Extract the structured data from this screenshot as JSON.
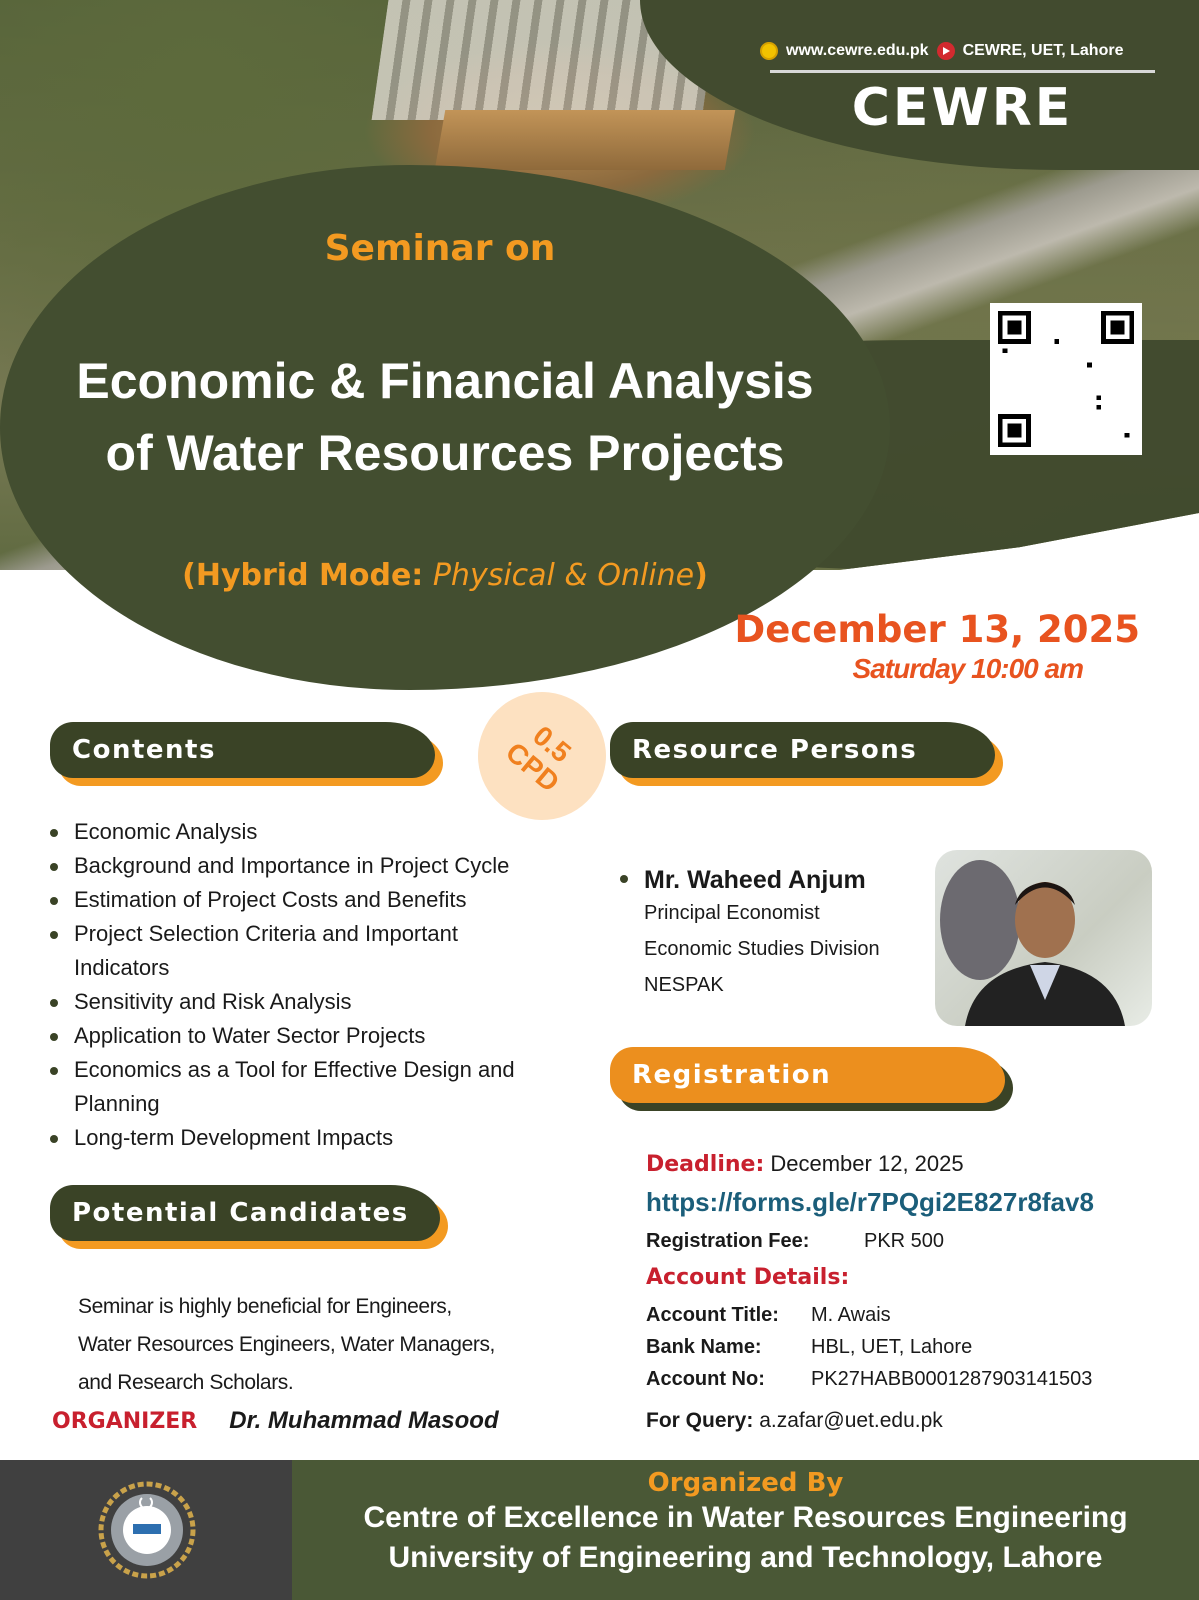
{
  "header": {
    "website": "www.cewre.edu.pk",
    "youtube": "CEWRE, UET, Lahore",
    "brand": "CEWRE",
    "icons": [
      "globe-icon",
      "youtube-icon",
      "qr-code"
    ]
  },
  "hero": {
    "kicker": "Seminar on",
    "title_line1": "Economic & Financial Analysis",
    "title_line2": "of Water Resources Projects",
    "mode_label": "(Hybrid Mode:",
    "mode_value": "Physical & Online",
    "mode_close": ")"
  },
  "event": {
    "date": "December 13, 2025",
    "day_time": "Saturday 10:00 am",
    "cpd_value": "0.5",
    "cpd_label": "CPD"
  },
  "contents": {
    "heading": "Contents",
    "items": [
      "Economic Analysis",
      "Background and Importance in Project Cycle",
      "Estimation of Project Costs and Benefits",
      "Project Selection Criteria and Important Indicators",
      "Sensitivity and Risk Analysis",
      "Application to Water Sector Projects",
      "Economics as a Tool for Effective Design and Planning",
      "Long-term Development Impacts"
    ]
  },
  "candidates": {
    "heading": "Potential Candidates",
    "text_lines": [
      "Seminar is highly beneficial for Engineers,",
      "Water Resources Engineers, Water Managers,",
      "and Research Scholars."
    ]
  },
  "organizer": {
    "label": "ORGANIZER",
    "name": "Dr. Muhammad Masood"
  },
  "resource": {
    "heading": "Resource Persons",
    "name": "Mr. Waheed Anjum",
    "lines": [
      "Principal Economist",
      "Economic Studies Division",
      "NESPAK"
    ]
  },
  "registration": {
    "heading": "Registration",
    "deadline_label": "Deadline:",
    "deadline": "December 12, 2025",
    "link": "https://forms.gle/r7PQgi2E827r8fav8",
    "fee_label": "Registration Fee:",
    "fee": "PKR 500",
    "account_heading": "Account Details:",
    "account": [
      {
        "k": "Account Title:",
        "v": "M. Awais"
      },
      {
        "k": "Bank Name:",
        "v": "HBL, UET, Lahore"
      },
      {
        "k": "Account No:",
        "v": "PK27HABB0001287903141503"
      }
    ],
    "query_label": "For Query:",
    "query": "a.zafar@uet.edu.pk"
  },
  "footer": {
    "organized_by": "Organized By",
    "line1": "Centre of Excellence in Water Resources Engineering",
    "line2": "University of Engineering and Technology, Lahore"
  },
  "colors": {
    "olive": "#434e30",
    "orange": "#f39a21",
    "date_red": "#e8531f",
    "label_red": "#c8202e",
    "link_blue": "#1b5e7a"
  }
}
